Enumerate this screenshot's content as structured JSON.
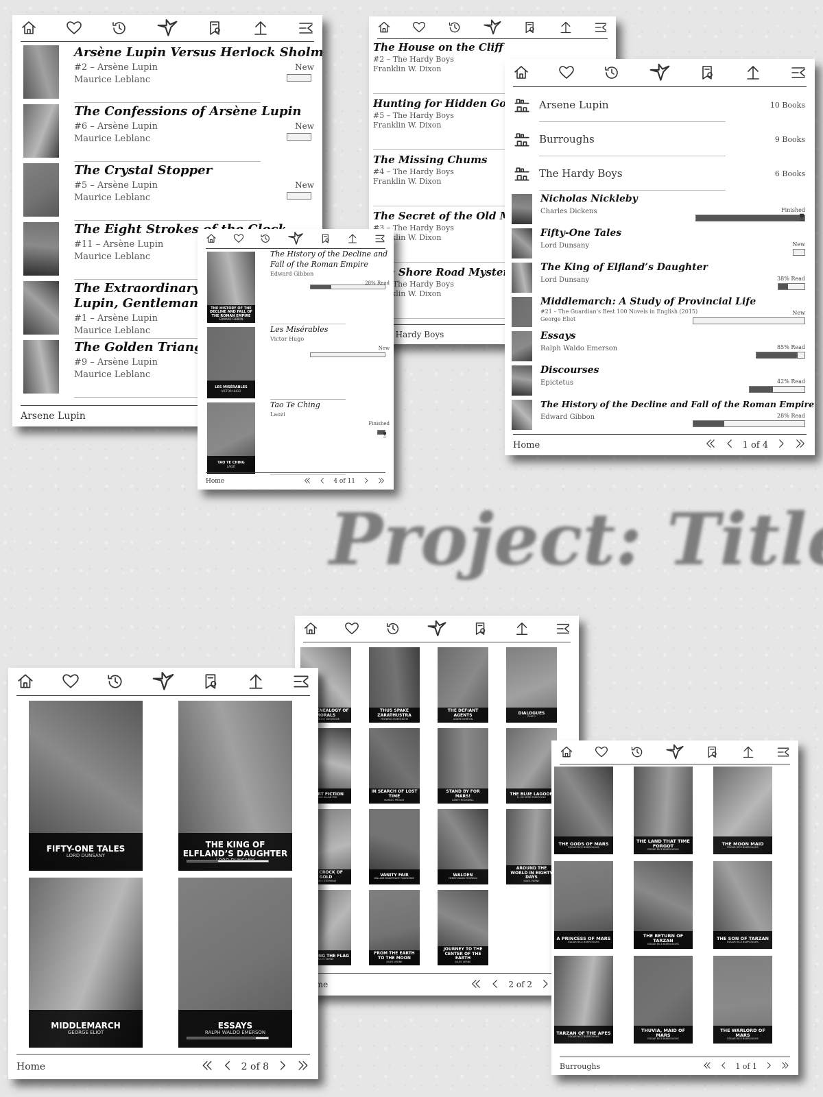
{
  "watermark": "Project: Title",
  "panel_a": {
    "footer": "Arsene Lupin",
    "items": [
      {
        "title": "Arsène Lupin Versus Herlock Sholmes",
        "series": "#2 – Arsène Lupin",
        "author": "Maurice Leblanc",
        "status": "New"
      },
      {
        "title": "The Confessions of Arsène Lupin",
        "series": "#6 – Arsène Lupin",
        "author": "Maurice Leblanc",
        "status": "New"
      },
      {
        "title": "The Crystal Stopper",
        "series": "#5 – Arsène Lupin",
        "author": "Maurice Leblanc",
        "status": "New"
      },
      {
        "title": "The Eight Strokes of the Clock",
        "series": "#11 – Arsène Lupin",
        "author": "Maurice Leblanc",
        "status": ""
      },
      {
        "title": "The Extraordinary Adventures of Arsène",
        "title2": "Lupin, Gentleman-Burglar",
        "series": "#1 – Arsène Lupin",
        "author": "Maurice Leblanc",
        "status": ""
      },
      {
        "title": "The Golden Triangle",
        "series": "#9 – Arsène Lupin",
        "author": "Maurice Leblanc",
        "status": ""
      }
    ]
  },
  "panel_b": {
    "footer": "The Hardy Boys",
    "items": [
      {
        "title": "The House on the Cliff",
        "series": "#2 – The Hardy Boys",
        "author": "Franklin W. Dixon"
      },
      {
        "title": "Hunting for Hidden Gold",
        "series": "#5 – The Hardy Boys",
        "author": "Franklin W. Dixon"
      },
      {
        "title": "The Missing Chums",
        "series": "#4 – The Hardy Boys",
        "author": "Franklin W. Dixon"
      },
      {
        "title": "The Secret of the Old Mill",
        "series": "#3 – The Hardy Boys",
        "author": "Franklin W. Dixon"
      },
      {
        "title": "The Shore Road Mystery",
        "series": "#6 – The Hardy Boys",
        "author": "Franklin W. Dixon"
      }
    ]
  },
  "panel_c": {
    "footer": "Home",
    "pager": "4 of 11",
    "items": [
      {
        "title": "The History of the Decline and",
        "title2": "Fall of the Roman Empire",
        "author": "Edward Gibbon",
        "status": "28% Read",
        "progress": 0.28,
        "cover_title": "THE HISTORY OF THE DECLINE AND FALL OF THE ROMAN EMPIRE",
        "cover_author": "EDWARD GIBBON"
      },
      {
        "title": "Les Misérables",
        "author": "Victor Hugo",
        "status": "New",
        "progress": 0,
        "cover_title": "LES MISÉRABLES",
        "cover_author": "VICTOR HUGO"
      },
      {
        "title": "Tao Te Ching",
        "author": "Laozi",
        "status": "Finished",
        "progress": 1,
        "cover_title": "TAO TE CHING",
        "cover_author": "LAOZI"
      }
    ]
  },
  "panel_d": {
    "footer": "Home",
    "pager": "1 of 4",
    "groups": [
      {
        "name": "Arsene Lupin",
        "count": "10 Books"
      },
      {
        "name": "Burroughs",
        "count": "9 Books"
      },
      {
        "name": "The Hardy Boys",
        "count": "6 Books"
      }
    ],
    "items": [
      {
        "title": "Nicholas Nickleby",
        "meta": "Charles Dickens",
        "status": "Finished",
        "progress": 1
      },
      {
        "title": "Fifty-One Tales",
        "meta": "Lord Dunsany",
        "status": "New",
        "progress": 0
      },
      {
        "title": "The King of Elfland’s Daughter",
        "meta": "Lord Dunsany",
        "status": "38% Read",
        "progress": 0.38
      },
      {
        "title": "Middlemarch: A Study of Provincial Life",
        "meta": "#21 – The Guardian’s Best 100 Novels in English (2015)",
        "meta2": "George Eliot",
        "status": "New",
        "progress": 0
      },
      {
        "title": "Essays",
        "meta": "Ralph Waldo Emerson",
        "status": "85% Read",
        "progress": 0.85
      },
      {
        "title": "Discourses",
        "meta": "Epictetus",
        "status": "42% Read",
        "progress": 0.42
      },
      {
        "title": "The History of the Decline and Fall of the Roman Empire",
        "meta": "Edward Gibbon",
        "status": "28% Read",
        "progress": 0.28
      }
    ]
  },
  "panel_e": {
    "footer": "Home",
    "pager": "2 of 8",
    "covers": [
      {
        "title": "FIFTY-ONE TALES",
        "author": "LORD DUNSANY"
      },
      {
        "title": "THE KING OF ELFLAND’S DAUGHTER",
        "author": "LORD DUNSANY"
      },
      {
        "title": "MIDDLEMARCH",
        "author": "GEORGE ELIOT"
      },
      {
        "title": "ESSAYS",
        "author": "RALPH WALDO EMERSON"
      }
    ]
  },
  "panel_f": {
    "footer": "Home",
    "pager": "2 of 2",
    "covers": [
      {
        "title": "THE GENEALOGY OF MORALS",
        "author": "FRIEDRICH NIETZSCHE"
      },
      {
        "title": "THUS SPAKE ZARATHUSTRA",
        "author": "FRIEDRICH NIETZSCHE"
      },
      {
        "title": "THE DEFIANT AGENTS",
        "author": "ANDRE NORTON"
      },
      {
        "title": "DIALOGUES",
        "author": "PLATO"
      },
      {
        "title": "SHORT FICTION",
        "author": "EDGAR ALLAN POE"
      },
      {
        "title": "IN SEARCH OF LOST TIME",
        "author": "MARCEL PROUST"
      },
      {
        "title": "STAND BY FOR MARS!",
        "author": "CAREY ROCKWELL"
      },
      {
        "title": "THE BLUE LAGOON",
        "author": "H. DE VERE STACPOOLE"
      },
      {
        "title": "THE CROCK OF GOLD",
        "author": "JAMES STEPHENS"
      },
      {
        "title": "VANITY FAIR",
        "author": "WILLIAM MAKEPEACE THACKERAY"
      },
      {
        "title": "WALDEN",
        "author": "HENRY DAVID THOREAU"
      },
      {
        "title": "AROUND THE WORLD IN EIGHTY DAYS",
        "author": "JULES VERNE"
      },
      {
        "title": "HOISTING THE FLAG",
        "author": "JULES VERNE"
      },
      {
        "title": "FROM THE EARTH TO THE MOON",
        "author": "JULES VERNE"
      },
      {
        "title": "JOURNEY TO THE CENTER OF THE EARTH",
        "author": "JULES VERNE"
      }
    ]
  },
  "panel_g": {
    "footer": "Burroughs",
    "pager": "1 of 1",
    "covers": [
      {
        "title": "THE GODS OF MARS",
        "author": "EDGAR RICE BURROUGHS"
      },
      {
        "title": "THE LAND THAT TIME FORGOT",
        "author": "EDGAR RICE BURROUGHS"
      },
      {
        "title": "THE MOON MAID",
        "author": "EDGAR RICE BURROUGHS"
      },
      {
        "title": "A PRINCESS OF MARS",
        "author": "EDGAR RICE BURROUGHS"
      },
      {
        "title": "THE RETURN OF TARZAN",
        "author": "EDGAR RICE BURROUGHS"
      },
      {
        "title": "THE SON OF TARZAN",
        "author": "EDGAR RICE BURROUGHS"
      },
      {
        "title": "TARZAN OF THE APES",
        "author": "EDGAR RICE BURROUGHS"
      },
      {
        "title": "THUVIA, MAID OF MARS",
        "author": "EDGAR RICE BURROUGHS"
      },
      {
        "title": "THE WARLORD OF MARS",
        "author": "EDGAR RICE BURROUGHS"
      }
    ]
  },
  "icons": [
    "home-icon",
    "heart-icon",
    "history-icon",
    "crane-logo-icon",
    "reading-list-icon",
    "up-arrow-icon",
    "menu-icon",
    "first-page-icon",
    "prev-page-icon",
    "next-page-icon",
    "last-page-icon",
    "bookshelf-icon",
    "trophy-icon"
  ]
}
